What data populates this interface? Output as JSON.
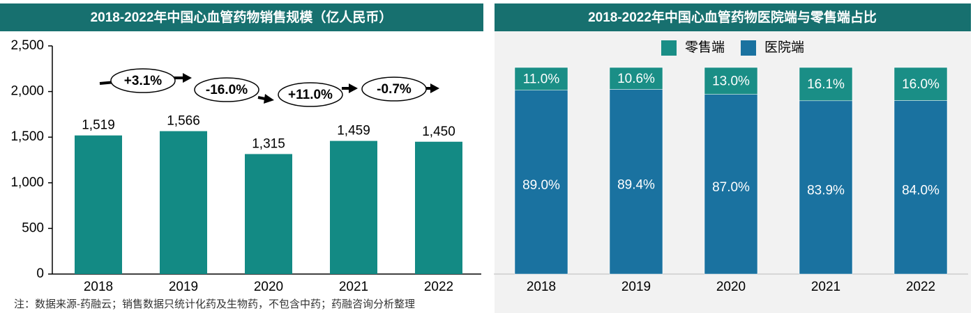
{
  "chart_data": [
    {
      "type": "bar",
      "title": "2018-2022年中国心血管药物销售规模（亿人民币）",
      "categories": [
        "2018",
        "2019",
        "2020",
        "2021",
        "2022"
      ],
      "values": [
        1519,
        1566,
        1315,
        1459,
        1450
      ],
      "value_labels": [
        "1,519",
        "1,566",
        "1,315",
        "1,459",
        "1,450"
      ],
      "color": "#138a84",
      "ylim": [
        0,
        2500
      ],
      "yticks": [
        0,
        500,
        {
          "value": 1000,
          "label": "1,000"
        },
        {
          "value": 1500,
          "label": "1,500"
        },
        {
          "value": 2000,
          "label": "2,000"
        },
        {
          "value": 2500,
          "label": "2,500"
        }
      ],
      "annotations": [
        "+3.1%",
        "-16.0%",
        "+11.0%",
        "-0.7%"
      ]
    },
    {
      "type": "stacked_bar",
      "title": "2018-2022年中国心血管药物医院端与零售端占比",
      "categories": [
        "2018",
        "2019",
        "2020",
        "2021",
        "2022"
      ],
      "ylim": [
        0,
        100
      ],
      "legend_order": [
        1,
        0
      ],
      "series": [
        {
          "name": "医院端",
          "color": "#1a72a0",
          "values": [
            89.0,
            89.4,
            87.0,
            83.9,
            84.0
          ],
          "value_labels": [
            "89.0%",
            "89.4%",
            "87.0%",
            "83.9%",
            "84.0%"
          ]
        },
        {
          "name": "零售端",
          "color": "#1a8e86",
          "values": [
            11.0,
            10.6,
            13.0,
            16.1,
            16.0
          ],
          "value_labels": [
            "11.0%",
            "10.6%",
            "13.0%",
            "16.1%",
            "16.0%"
          ]
        }
      ]
    }
  ],
  "footnote": "注：数据来源-药融云；销售数据只统计化药及生物药，不包含中药；药融咨询分析整理"
}
